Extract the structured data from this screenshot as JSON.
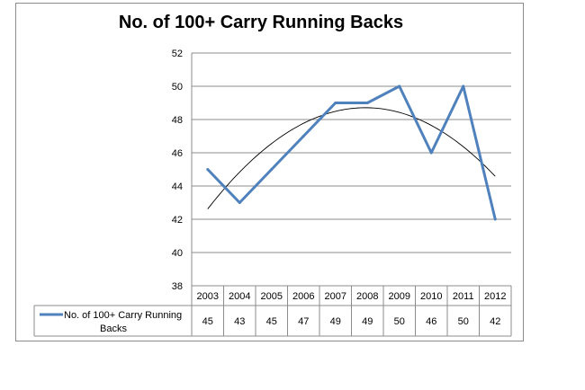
{
  "chart_data": {
    "type": "line",
    "title": "No. of 100+ Carry Running Backs",
    "categories": [
      "2003",
      "2004",
      "2005",
      "2006",
      "2007",
      "2008",
      "2009",
      "2010",
      "2011",
      "2012"
    ],
    "series": [
      {
        "name": "No. of 100+ Carry Running Backs",
        "values": [
          45,
          43,
          45,
          47,
          49,
          49,
          50,
          46,
          50,
          42
        ],
        "color": "#4f81bd"
      }
    ],
    "trendline": {
      "type": "polynomial",
      "order": 2,
      "color": "#000000"
    },
    "ylim": [
      38,
      52
    ],
    "yticks": [
      38,
      40,
      42,
      44,
      46,
      48,
      50,
      52
    ],
    "grid": true,
    "data_table": true,
    "legend": "data-table-left",
    "legend_label_lines": [
      "No. of 100+ Carry Running",
      "Backs"
    ]
  }
}
